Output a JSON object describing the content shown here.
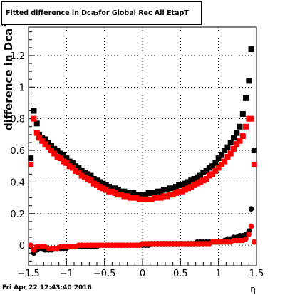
{
  "title": {
    "prefix": "Fitted difference in Dca",
    "subscript": "z",
    "suffix": " for Global Rec All EtapT"
  },
  "timestamp": "Fri Apr 22 12:43:40 2016",
  "chart_data": {
    "type": "scatter",
    "title": "Fitted difference in Dca_z for Global Rec All EtapT",
    "xlabel": "η",
    "ylabel": "difference in Dca_z",
    "xlim": [
      -1.5,
      1.5
    ],
    "ylim": [
      -0.13,
      1.38
    ],
    "x_ticks": [
      -1.5,
      -1,
      -0.5,
      0,
      0.5,
      1,
      1.5
    ],
    "y_ticks": [
      0,
      0.2,
      0.4,
      0.6,
      0.8,
      1,
      1.2
    ],
    "grid": true,
    "marker_colors": [
      "#000000",
      "#ff0000"
    ],
    "series": [
      {
        "marker": "square",
        "color": "#000000",
        "x": [
          -1.47,
          -1.43,
          -1.39,
          -1.36,
          -1.32,
          -1.28,
          -1.24,
          -1.2,
          -1.16,
          -1.12,
          -1.08,
          -1.04,
          -1.0,
          -0.96,
          -0.92,
          -0.88,
          -0.84,
          -0.8,
          -0.76,
          -0.72,
          -0.68,
          -0.64,
          -0.6,
          -0.56,
          -0.52,
          -0.48,
          -0.44,
          -0.4,
          -0.36,
          -0.32,
          -0.28,
          -0.24,
          -0.2,
          -0.16,
          -0.12,
          -0.08,
          -0.04,
          0.0,
          0.04,
          0.08,
          0.12,
          0.16,
          0.2,
          0.24,
          0.28,
          0.32,
          0.36,
          0.4,
          0.44,
          0.48,
          0.52,
          0.56,
          0.6,
          0.64,
          0.68,
          0.72,
          0.76,
          0.8,
          0.84,
          0.88,
          0.92,
          0.96,
          1.0,
          1.04,
          1.08,
          1.12,
          1.16,
          1.2,
          1.24,
          1.28,
          1.32,
          1.36,
          1.4,
          1.43,
          1.47
        ],
        "y": [
          0.55,
          0.85,
          0.77,
          0.7,
          0.68,
          0.67,
          0.65,
          0.63,
          0.61,
          0.6,
          0.58,
          0.57,
          0.55,
          0.53,
          0.52,
          0.5,
          0.49,
          0.47,
          0.46,
          0.45,
          0.44,
          0.42,
          0.41,
          0.4,
          0.39,
          0.38,
          0.37,
          0.36,
          0.36,
          0.35,
          0.34,
          0.34,
          0.33,
          0.33,
          0.33,
          0.32,
          0.32,
          0.32,
          0.32,
          0.33,
          0.33,
          0.33,
          0.34,
          0.34,
          0.35,
          0.35,
          0.36,
          0.36,
          0.37,
          0.38,
          0.38,
          0.39,
          0.4,
          0.41,
          0.42,
          0.43,
          0.44,
          0.46,
          0.47,
          0.49,
          0.5,
          0.52,
          0.55,
          0.57,
          0.6,
          0.62,
          0.65,
          0.68,
          0.71,
          0.75,
          0.83,
          0.93,
          1.04,
          1.24,
          0.6
        ]
      },
      {
        "marker": "square",
        "color": "#ff0000",
        "x": [
          -1.47,
          -1.43,
          -1.39,
          -1.36,
          -1.32,
          -1.28,
          -1.24,
          -1.2,
          -1.16,
          -1.12,
          -1.08,
          -1.04,
          -1.0,
          -0.96,
          -0.92,
          -0.88,
          -0.84,
          -0.8,
          -0.76,
          -0.72,
          -0.68,
          -0.64,
          -0.6,
          -0.56,
          -0.52,
          -0.48,
          -0.44,
          -0.4,
          -0.36,
          -0.32,
          -0.28,
          -0.24,
          -0.2,
          -0.16,
          -0.12,
          -0.08,
          -0.04,
          0.0,
          0.04,
          0.08,
          0.12,
          0.16,
          0.2,
          0.24,
          0.28,
          0.32,
          0.36,
          0.4,
          0.44,
          0.48,
          0.52,
          0.56,
          0.6,
          0.64,
          0.68,
          0.72,
          0.76,
          0.8,
          0.84,
          0.88,
          0.92,
          0.96,
          1.0,
          1.04,
          1.08,
          1.12,
          1.16,
          1.2,
          1.24,
          1.28,
          1.32,
          1.36,
          1.4,
          1.43,
          1.47
        ],
        "y": [
          0.51,
          0.8,
          0.71,
          0.68,
          0.66,
          0.64,
          0.62,
          0.6,
          0.58,
          0.56,
          0.55,
          0.53,
          0.52,
          0.5,
          0.49,
          0.47,
          0.46,
          0.44,
          0.43,
          0.42,
          0.41,
          0.39,
          0.38,
          0.37,
          0.36,
          0.35,
          0.34,
          0.34,
          0.33,
          0.32,
          0.32,
          0.31,
          0.31,
          0.3,
          0.3,
          0.3,
          0.29,
          0.29,
          0.29,
          0.29,
          0.29,
          0.3,
          0.3,
          0.3,
          0.31,
          0.31,
          0.32,
          0.32,
          0.33,
          0.34,
          0.34,
          0.35,
          0.36,
          0.37,
          0.38,
          0.39,
          0.4,
          0.41,
          0.42,
          0.44,
          0.45,
          0.47,
          0.49,
          0.51,
          0.53,
          0.56,
          0.58,
          0.61,
          0.64,
          0.66,
          0.69,
          0.75,
          0.8,
          0.8,
          0.51
        ]
      },
      {
        "marker": "circle",
        "color": "#000000",
        "x": [
          -1.47,
          -1.43,
          -1.39,
          -1.36,
          -1.32,
          -1.28,
          -1.24,
          -1.2,
          -1.16,
          -1.12,
          -1.08,
          -1.04,
          -1.0,
          -0.96,
          -0.92,
          -0.88,
          -0.84,
          -0.8,
          -0.76,
          -0.72,
          -0.68,
          -0.64,
          -0.6,
          -0.56,
          -0.52,
          -0.48,
          -0.44,
          -0.4,
          -0.36,
          -0.32,
          -0.28,
          -0.24,
          -0.2,
          -0.16,
          -0.12,
          -0.08,
          -0.04,
          0.0,
          0.04,
          0.08,
          0.12,
          0.16,
          0.2,
          0.24,
          0.28,
          0.32,
          0.36,
          0.4,
          0.44,
          0.48,
          0.52,
          0.56,
          0.6,
          0.64,
          0.68,
          0.72,
          0.76,
          0.8,
          0.84,
          0.88,
          0.92,
          0.96,
          1.0,
          1.04,
          1.08,
          1.12,
          1.16,
          1.2,
          1.24,
          1.28,
          1.32,
          1.36,
          1.4,
          1.43,
          1.47
        ],
        "y": [
          -0.01,
          -0.05,
          -0.03,
          -0.02,
          -0.02,
          -0.03,
          -0.03,
          -0.03,
          -0.02,
          -0.02,
          -0.02,
          -0.02,
          -0.02,
          -0.01,
          -0.01,
          -0.01,
          -0.01,
          -0.01,
          -0.01,
          -0.01,
          -0.01,
          -0.01,
          -0.01,
          0.0,
          0.0,
          0.0,
          0.0,
          0.0,
          0.0,
          0.0,
          0.0,
          0.0,
          0.0,
          0.0,
          0.0,
          0.0,
          0.0,
          0.0,
          0.0,
          0.0,
          0.01,
          0.01,
          0.01,
          0.01,
          0.01,
          0.01,
          0.01,
          0.01,
          0.01,
          0.01,
          0.01,
          0.01,
          0.01,
          0.01,
          0.01,
          0.02,
          0.02,
          0.02,
          0.02,
          0.02,
          0.02,
          0.02,
          0.02,
          0.02,
          0.03,
          0.04,
          0.04,
          0.05,
          0.05,
          0.06,
          0.06,
          0.07,
          0.09,
          0.23,
          0.02
        ]
      },
      {
        "marker": "circle",
        "color": "#ff0000",
        "x": [
          -1.47,
          -1.43,
          -1.39,
          -1.36,
          -1.32,
          -1.28,
          -1.24,
          -1.2,
          -1.16,
          -1.12,
          -1.08,
          -1.04,
          -1.0,
          -0.96,
          -0.92,
          -0.88,
          -0.84,
          -0.8,
          -0.76,
          -0.72,
          -0.68,
          -0.64,
          -0.6,
          -0.56,
          -0.52,
          -0.48,
          -0.44,
          -0.4,
          -0.36,
          -0.32,
          -0.28,
          -0.24,
          -0.2,
          -0.16,
          -0.12,
          -0.08,
          -0.04,
          0.0,
          0.04,
          0.08,
          0.12,
          0.16,
          0.2,
          0.24,
          0.28,
          0.32,
          0.36,
          0.4,
          0.44,
          0.48,
          0.52,
          0.56,
          0.6,
          0.64,
          0.68,
          0.72,
          0.76,
          0.8,
          0.84,
          0.88,
          0.92,
          0.96,
          1.0,
          1.04,
          1.08,
          1.12,
          1.16,
          1.2,
          1.24,
          1.28,
          1.32,
          1.36,
          1.4,
          1.43,
          1.47
        ],
        "y": [
          0.0,
          -0.03,
          -0.01,
          -0.01,
          -0.01,
          -0.01,
          -0.02,
          -0.02,
          -0.02,
          -0.02,
          -0.01,
          -0.01,
          -0.01,
          -0.01,
          -0.01,
          -0.01,
          0.0,
          0.0,
          0.0,
          0.0,
          0.0,
          0.0,
          0.0,
          0.0,
          0.0,
          0.0,
          0.0,
          0.0,
          0.0,
          0.0,
          0.0,
          0.0,
          0.0,
          0.0,
          0.0,
          0.0,
          0.0,
          0.01,
          0.01,
          0.01,
          0.01,
          0.01,
          0.01,
          0.01,
          0.01,
          0.01,
          0.01,
          0.01,
          0.01,
          0.01,
          0.01,
          0.01,
          0.01,
          0.01,
          0.01,
          0.01,
          0.01,
          0.01,
          0.01,
          0.01,
          0.02,
          0.02,
          0.02,
          0.02,
          0.02,
          0.02,
          0.02,
          0.03,
          0.03,
          0.03,
          0.03,
          0.04,
          0.07,
          0.12,
          0.02
        ]
      }
    ]
  }
}
